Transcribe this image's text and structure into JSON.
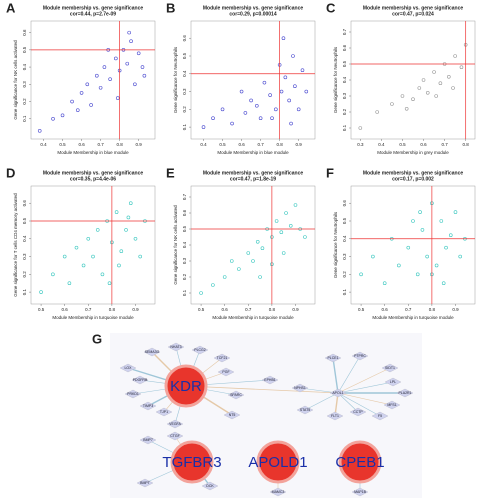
{
  "chart_data": [
    {
      "type": "scatter",
      "panel_label": "A",
      "title": "Module membership vs. gene significance",
      "subtitle": "cor=0.44, p=2.7e-09",
      "x_label": "Module Membership in blue module",
      "y_label": "Gene significance for NK cells activated",
      "color": "#4b4bd0",
      "xlim": [
        0.35,
        0.97
      ],
      "ylim": [
        0,
        0.65
      ],
      "xticks": [
        0.4,
        0.5,
        0.6,
        0.7,
        0.8,
        0.9
      ],
      "yticks": [
        0.1,
        0.2,
        0.3,
        0.4,
        0.5,
        0.6
      ],
      "vline": 0.8,
      "hline": 0.5,
      "x": [
        0.38,
        0.45,
        0.5,
        0.55,
        0.58,
        0.6,
        0.63,
        0.65,
        0.68,
        0.7,
        0.72,
        0.75,
        0.78,
        0.8,
        0.82,
        0.84,
        0.86,
        0.88,
        0.9,
        0.92,
        0.93,
        0.85,
        0.79,
        0.74
      ],
      "y": [
        0.03,
        0.1,
        0.12,
        0.2,
        0.15,
        0.25,
        0.3,
        0.18,
        0.35,
        0.28,
        0.4,
        0.33,
        0.45,
        0.38,
        0.5,
        0.42,
        0.55,
        0.3,
        0.48,
        0.4,
        0.35,
        0.6,
        0.22,
        0.5
      ]
    },
    {
      "type": "scatter",
      "panel_label": "B",
      "title": "Module membership vs. gene significance",
      "subtitle": "cor=0.29, p=0.00014",
      "x_label": "Module Membership in blue module",
      "y_label": "Gene significance for Neutrophils",
      "color": "#4b4bd0",
      "xlim": [
        0.35,
        0.97
      ],
      "ylim": [
        0.05,
        0.68
      ],
      "xticks": [
        0.4,
        0.5,
        0.6,
        0.7,
        0.8,
        0.9
      ],
      "yticks": [
        0.1,
        0.2,
        0.3,
        0.4,
        0.5,
        0.6
      ],
      "vline": 0.8,
      "hline": 0.4,
      "x": [
        0.4,
        0.45,
        0.5,
        0.55,
        0.6,
        0.62,
        0.65,
        0.68,
        0.7,
        0.72,
        0.75,
        0.78,
        0.8,
        0.81,
        0.83,
        0.85,
        0.87,
        0.88,
        0.9,
        0.92,
        0.94,
        0.82,
        0.76,
        0.86
      ],
      "y": [
        0.1,
        0.15,
        0.2,
        0.12,
        0.3,
        0.18,
        0.25,
        0.22,
        0.15,
        0.35,
        0.28,
        0.2,
        0.45,
        0.3,
        0.38,
        0.25,
        0.5,
        0.33,
        0.2,
        0.42,
        0.3,
        0.6,
        0.15,
        0.12
      ]
    },
    {
      "type": "scatter",
      "panel_label": "C",
      "title": "Module membership vs. gene significance",
      "subtitle": "cor=0.47, p=0.024",
      "x_label": "Module Membership in grey module",
      "y_label": "Gene significance for Neutrophils",
      "color": "#999999",
      "xlim": [
        0.27,
        0.83
      ],
      "ylim": [
        0.05,
        0.75
      ],
      "xticks": [
        0.3,
        0.4,
        0.5,
        0.6,
        0.7,
        0.8
      ],
      "yticks": [
        0.1,
        0.2,
        0.3,
        0.4,
        0.5,
        0.6,
        0.7
      ],
      "vline": 0.8,
      "hline": 0.5,
      "x": [
        0.3,
        0.38,
        0.45,
        0.5,
        0.55,
        0.58,
        0.6,
        0.62,
        0.65,
        0.68,
        0.7,
        0.72,
        0.75,
        0.78,
        0.8,
        0.66,
        0.52,
        0.74
      ],
      "y": [
        0.1,
        0.2,
        0.25,
        0.3,
        0.28,
        0.35,
        0.4,
        0.32,
        0.45,
        0.38,
        0.5,
        0.42,
        0.55,
        0.48,
        0.62,
        0.3,
        0.22,
        0.35
      ]
    },
    {
      "type": "scatter",
      "panel_label": "D",
      "title": "Module membership vs. gene significance",
      "subtitle": "cor=0.35, p=4.4e-06",
      "x_label": "Module Membership in turquoise module",
      "y_label": "Gene significance for T cells CD4 memory activated",
      "color": "#3cc8c0",
      "xlim": [
        0.47,
        0.97
      ],
      "ylim": [
        0.05,
        0.68
      ],
      "xticks": [
        0.5,
        0.6,
        0.7,
        0.8,
        0.9
      ],
      "yticks": [
        0.1,
        0.2,
        0.3,
        0.4,
        0.5,
        0.6
      ],
      "vline": 0.8,
      "hline": 0.5,
      "x": [
        0.5,
        0.55,
        0.6,
        0.62,
        0.65,
        0.68,
        0.7,
        0.72,
        0.74,
        0.76,
        0.78,
        0.8,
        0.82,
        0.84,
        0.86,
        0.88,
        0.9,
        0.92,
        0.94,
        0.83,
        0.79,
        0.87
      ],
      "y": [
        0.1,
        0.2,
        0.3,
        0.15,
        0.35,
        0.25,
        0.4,
        0.3,
        0.45,
        0.2,
        0.5,
        0.38,
        0.55,
        0.33,
        0.45,
        0.6,
        0.4,
        0.3,
        0.5,
        0.25,
        0.15,
        0.52
      ]
    },
    {
      "type": "scatter",
      "panel_label": "E",
      "title": "Module membership vs. gene significance",
      "subtitle": "cor=0.47, p=1.8e-19",
      "x_label": "Module Membership in turquoise module",
      "y_label": "Gene significance for NK cells activated",
      "color": "#3cc8c0",
      "xlim": [
        0.47,
        0.97
      ],
      "ylim": [
        0.05,
        0.75
      ],
      "xticks": [
        0.5,
        0.6,
        0.7,
        0.8,
        0.9
      ],
      "yticks": [
        0.1,
        0.2,
        0.3,
        0.4,
        0.5,
        0.6,
        0.7
      ],
      "vline": 0.8,
      "hline": 0.5,
      "x": [
        0.5,
        0.55,
        0.6,
        0.63,
        0.66,
        0.7,
        0.72,
        0.74,
        0.76,
        0.78,
        0.8,
        0.82,
        0.84,
        0.86,
        0.88,
        0.9,
        0.92,
        0.94,
        0.85,
        0.8,
        0.75
      ],
      "y": [
        0.1,
        0.15,
        0.2,
        0.3,
        0.25,
        0.35,
        0.3,
        0.42,
        0.38,
        0.5,
        0.45,
        0.55,
        0.48,
        0.6,
        0.52,
        0.65,
        0.5,
        0.45,
        0.35,
        0.28,
        0.2
      ]
    },
    {
      "type": "scatter",
      "panel_label": "F",
      "title": "Module membership vs. gene significance",
      "subtitle": "cor=0.17, p=0.002",
      "x_label": "Module Membership in turquoise module",
      "y_label": "Gene significance for Neutrophils",
      "color": "#3cc8c0",
      "xlim": [
        0.47,
        0.97
      ],
      "ylim": [
        0.05,
        0.68
      ],
      "xticks": [
        0.5,
        0.6,
        0.7,
        0.8,
        0.9
      ],
      "yticks": [
        0.1,
        0.2,
        0.3,
        0.4,
        0.5,
        0.6
      ],
      "vline": 0.8,
      "hline": 0.4,
      "x": [
        0.5,
        0.55,
        0.6,
        0.63,
        0.66,
        0.7,
        0.72,
        0.74,
        0.76,
        0.78,
        0.8,
        0.82,
        0.84,
        0.86,
        0.88,
        0.9,
        0.92,
        0.94,
        0.85,
        0.8,
        0.75
      ],
      "y": [
        0.2,
        0.3,
        0.15,
        0.4,
        0.25,
        0.35,
        0.5,
        0.2,
        0.45,
        0.3,
        0.6,
        0.25,
        0.5,
        0.35,
        0.42,
        0.55,
        0.3,
        0.4,
        0.15,
        0.2,
        0.55
      ]
    }
  ],
  "network": {
    "panel_label": "G",
    "hubs": [
      "KDR",
      "TGFBR3",
      "APOLD1",
      "CPEB1"
    ],
    "genes": [
      "SEMA3G",
      "NHAT3",
      "PLCG2",
      "TCF21",
      "LOX",
      "PDGFRB",
      "PGF",
      "PRKD1",
      "TIMP3",
      "TJP1",
      "SPARC",
      "VEGFA",
      "NT5",
      "EPHB1",
      "NPHS1",
      "APOL1",
      "PLCE1",
      "PTPRC",
      "SIDT1",
      "LPL",
      "PLA2R1",
      "MFS1",
      "F5",
      "CCTP",
      "FLT1",
      "STAT5",
      "BMP7",
      "CTGF",
      "DCK",
      "BMPT",
      "MAMC3",
      "MAP1B"
    ]
  }
}
